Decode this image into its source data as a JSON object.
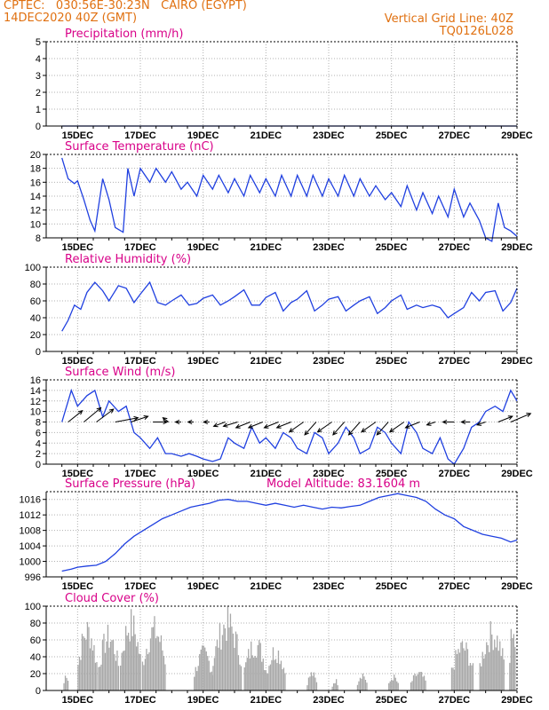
{
  "header": {
    "line1_left": "CPTEC:   030:56E-30:23N   CAIRO (EGYPT)",
    "line2_left": "14DEC2020 40Z (GMT)",
    "line1_right": "Vertical Grid Line: 40Z",
    "line2_right": "TQ0126L028"
  },
  "colors": {
    "header": "#e07010",
    "title": "#d80088",
    "line": "#2040e0",
    "bars": "#a8a8a8",
    "grid": "#b0b0b0"
  },
  "date_labels": [
    "15DEC",
    "17DEC",
    "19DEC",
    "21DEC",
    "23DEC",
    "25DEC",
    "27DEC",
    "29DEC"
  ],
  "chart_data": [
    {
      "id": "precip",
      "type": "line",
      "title": "Precipitation (mm/h)",
      "ylim": [
        0,
        5
      ],
      "yticks": [
        0,
        1,
        2,
        3,
        4,
        5
      ],
      "x_start": "14DEC2020",
      "x_end": "29DEC2020",
      "series": [
        {
          "x": [
            14.5,
            29
          ],
          "y": [
            0,
            0
          ]
        }
      ]
    },
    {
      "id": "temperature",
      "type": "line",
      "title": "Surface Temperature (nC)",
      "ylim": [
        8,
        20
      ],
      "yticks": [
        8,
        10,
        12,
        14,
        16,
        18,
        20
      ],
      "series": [
        {
          "x": [
            14.5,
            14.7,
            14.9,
            15.0,
            15.2,
            15.4,
            15.55,
            15.8,
            16.0,
            16.2,
            16.45,
            16.6,
            16.8,
            17.0,
            17.3,
            17.5,
            17.8,
            18.0,
            18.3,
            18.5,
            18.8,
            19.0,
            19.3,
            19.5,
            19.8,
            20.0,
            20.3,
            20.5,
            20.8,
            21.0,
            21.3,
            21.5,
            21.8,
            22.0,
            22.3,
            22.5,
            22.8,
            23.0,
            23.3,
            23.5,
            23.8,
            24.0,
            24.3,
            24.5,
            24.8,
            25.0,
            25.3,
            25.5,
            25.8,
            26.0,
            26.3,
            26.5,
            26.8,
            27.0,
            27.3,
            27.5,
            27.8,
            28.0,
            28.2,
            28.4,
            28.6,
            28.8,
            29.0
          ],
          "y": [
            19.5,
            16.5,
            15.8,
            16.2,
            13.5,
            10.5,
            9,
            16.5,
            13.5,
            9.5,
            8.8,
            18,
            14,
            18,
            16,
            18,
            16,
            17.5,
            15,
            16,
            14,
            17,
            15,
            17,
            14.5,
            16.5,
            14,
            17,
            14.5,
            16.5,
            14,
            17,
            14,
            17,
            14,
            17,
            14,
            16.5,
            14,
            17,
            14,
            16.5,
            14,
            15.5,
            13.5,
            14.5,
            12.5,
            15.5,
            12,
            14.5,
            11.5,
            14,
            11,
            15,
            11,
            13,
            10.5,
            8,
            7,
            13,
            9.5,
            9,
            8.2
          ]
        }
      ]
    },
    {
      "id": "humidity",
      "type": "line",
      "title": "Relative Humidity (%)",
      "ylim": [
        0,
        100
      ],
      "yticks": [
        0,
        20,
        40,
        60,
        80,
        100
      ],
      "series": [
        {
          "x": [
            14.5,
            14.7,
            14.9,
            15.1,
            15.3,
            15.55,
            15.8,
            16.0,
            16.3,
            16.55,
            16.8,
            17.0,
            17.3,
            17.55,
            17.8,
            18.0,
            18.3,
            18.55,
            18.8,
            19.0,
            19.3,
            19.55,
            19.8,
            20.0,
            20.3,
            20.55,
            20.8,
            21.0,
            21.3,
            21.55,
            21.8,
            22.0,
            22.3,
            22.55,
            22.8,
            23.0,
            23.3,
            23.55,
            23.8,
            24.0,
            24.3,
            24.55,
            24.8,
            25.0,
            25.3,
            25.5,
            25.8,
            26.0,
            26.3,
            26.55,
            26.8,
            27.0,
            27.3,
            27.55,
            27.8,
            28.0,
            28.3,
            28.55,
            28.8,
            29.0
          ],
          "y": [
            24,
            37,
            55,
            50,
            70,
            82,
            72,
            60,
            78,
            75,
            58,
            68,
            82,
            58,
            55,
            60,
            67,
            55,
            57,
            63,
            67,
            55,
            60,
            65,
            73,
            55,
            55,
            64,
            70,
            48,
            58,
            62,
            72,
            48,
            55,
            62,
            65,
            48,
            55,
            60,
            65,
            45,
            52,
            60,
            67,
            50,
            55,
            52,
            55,
            52,
            40,
            45,
            52,
            70,
            60,
            70,
            72,
            48,
            58,
            75
          ]
        }
      ]
    },
    {
      "id": "wind",
      "type": "line",
      "title": "Surface Wind (m/s)",
      "ylim": [
        0,
        16
      ],
      "yticks": [
        0,
        2,
        4,
        6,
        8,
        10,
        12,
        14,
        16
      ],
      "series": [
        {
          "x": [
            14.5,
            14.8,
            15.0,
            15.3,
            15.55,
            15.8,
            16.0,
            16.3,
            16.55,
            16.8,
            17.0,
            17.3,
            17.55,
            17.8,
            18.0,
            18.3,
            18.55,
            18.8,
            19.0,
            19.3,
            19.55,
            19.8,
            20.0,
            20.3,
            20.55,
            20.8,
            21.0,
            21.3,
            21.55,
            21.8,
            22.0,
            22.3,
            22.55,
            22.8,
            23.0,
            23.3,
            23.55,
            23.8,
            24.0,
            24.3,
            24.55,
            24.8,
            25.0,
            25.3,
            25.55,
            25.8,
            26.0,
            26.3,
            26.55,
            26.8,
            27.0,
            27.3,
            27.55,
            27.8,
            28.0,
            28.3,
            28.55,
            28.8,
            29.0
          ],
          "y": [
            8,
            14,
            11,
            13,
            14,
            9,
            12,
            10,
            11,
            6,
            5,
            3,
            5,
            2,
            2,
            1.5,
            2,
            1.5,
            1,
            0.5,
            1,
            5,
            4,
            3,
            7,
            4,
            5,
            3,
            6,
            5,
            3,
            2,
            6,
            5,
            2,
            4,
            7,
            5,
            2,
            3,
            7,
            6,
            4,
            2,
            8,
            6,
            3,
            2,
            5,
            1,
            0,
            3,
            7,
            8,
            10,
            11,
            10,
            14,
            12
          ]
        }
      ],
      "arrows": [
        {
          "x": 14.7,
          "dx": 10,
          "dy": -8
        },
        {
          "x": 15.2,
          "dx": 12,
          "dy": -10
        },
        {
          "x": 15.6,
          "dx": 12,
          "dy": -9
        },
        {
          "x": 16.2,
          "dx": 16,
          "dy": -3
        },
        {
          "x": 16.7,
          "dx": 12,
          "dy": -4
        },
        {
          "x": 17.4,
          "dx": 10,
          "dy": 0
        },
        {
          "x": 17.9,
          "dx": -4,
          "dy": -3
        },
        {
          "x": 18.3,
          "dx": -4,
          "dy": 0
        },
        {
          "x": 18.7,
          "dx": -4,
          "dy": 0
        },
        {
          "x": 19.2,
          "dx": -4,
          "dy": 0
        },
        {
          "x": 19.7,
          "dx": -8,
          "dy": 3
        },
        {
          "x": 20.1,
          "dx": -10,
          "dy": 3
        },
        {
          "x": 20.5,
          "dx": -10,
          "dy": 4
        },
        {
          "x": 20.9,
          "dx": -10,
          "dy": 4
        },
        {
          "x": 21.4,
          "dx": -10,
          "dy": 4
        },
        {
          "x": 21.8,
          "dx": -10,
          "dy": 4
        },
        {
          "x": 22.2,
          "dx": -10,
          "dy": 7
        },
        {
          "x": 22.6,
          "dx": -8,
          "dy": 9
        },
        {
          "x": 23.1,
          "dx": -10,
          "dy": 7
        },
        {
          "x": 23.5,
          "dx": -8,
          "dy": 9
        },
        {
          "x": 24.0,
          "dx": -8,
          "dy": 9
        },
        {
          "x": 24.5,
          "dx": -10,
          "dy": 7
        },
        {
          "x": 24.9,
          "dx": -8,
          "dy": 9
        },
        {
          "x": 25.4,
          "dx": -10,
          "dy": 7
        },
        {
          "x": 25.9,
          "dx": -10,
          "dy": 4
        },
        {
          "x": 26.4,
          "dx": -6,
          "dy": 2
        },
        {
          "x": 27.0,
          "dx": -8,
          "dy": 0
        },
        {
          "x": 27.5,
          "dx": -6,
          "dy": 0
        },
        {
          "x": 28.0,
          "dx": -6,
          "dy": 2
        },
        {
          "x": 28.4,
          "dx": 10,
          "dy": -4
        },
        {
          "x": 28.8,
          "dx": 14,
          "dy": -6
        }
      ]
    },
    {
      "id": "pressure",
      "type": "line",
      "title": "Surface Pressure (hPa)",
      "subtitle": "Model Altitude: 83.1604 m",
      "ylim": [
        996,
        1018
      ],
      "yticks": [
        996,
        1000,
        1004,
        1008,
        1012,
        1016
      ],
      "series": [
        {
          "x": [
            14.5,
            14.8,
            15.0,
            15.3,
            15.6,
            15.9,
            16.2,
            16.5,
            16.8,
            17.1,
            17.4,
            17.7,
            18.0,
            18.3,
            18.6,
            18.9,
            19.2,
            19.5,
            19.8,
            20.1,
            20.4,
            20.7,
            21.0,
            21.3,
            21.6,
            21.9,
            22.2,
            22.5,
            22.8,
            23.1,
            23.4,
            23.7,
            24.0,
            24.3,
            24.6,
            24.9,
            25.2,
            25.5,
            25.8,
            26.1,
            26.4,
            26.7,
            27.0,
            27.3,
            27.6,
            27.9,
            28.2,
            28.5,
            28.8,
            29.0
          ],
          "y": [
            997.5,
            998,
            998.5,
            998.8,
            999,
            1000,
            1002,
            1004.5,
            1006.5,
            1008,
            1009.5,
            1011,
            1012,
            1013,
            1014,
            1014.5,
            1015,
            1015.8,
            1016,
            1015.5,
            1015.5,
            1015,
            1014.5,
            1015,
            1014.5,
            1014,
            1014.5,
            1014,
            1013.5,
            1014,
            1013.8,
            1014.2,
            1014.5,
            1015.5,
            1016.5,
            1017,
            1017.5,
            1017,
            1016.5,
            1015.5,
            1013.5,
            1012,
            1011,
            1009,
            1008,
            1007,
            1006.5,
            1006,
            1005,
            1005.5
          ]
        }
      ]
    },
    {
      "id": "cloud",
      "type": "bar",
      "title": "Cloud Cover (%)",
      "ylim": [
        0,
        100
      ],
      "yticks": [
        0,
        20,
        40,
        60,
        80,
        100
      ],
      "segments": [
        {
          "x0": 14.55,
          "x1": 14.7,
          "peak": 25
        },
        {
          "x0": 15.0,
          "x1": 15.6,
          "peak": 90
        },
        {
          "x0": 15.65,
          "x1": 16.3,
          "peak": 80
        },
        {
          "x0": 16.35,
          "x1": 17.0,
          "peak": 100
        },
        {
          "x0": 17.05,
          "x1": 17.8,
          "peak": 90
        },
        {
          "x0": 18.7,
          "x1": 19.3,
          "peak": 55
        },
        {
          "x0": 19.3,
          "x1": 20.2,
          "peak": 100
        },
        {
          "x0": 20.3,
          "x1": 21.0,
          "peak": 70
        },
        {
          "x0": 21.0,
          "x1": 21.6,
          "peak": 60
        },
        {
          "x0": 22.3,
          "x1": 22.6,
          "peak": 25
        },
        {
          "x0": 23.1,
          "x1": 23.3,
          "peak": 15
        },
        {
          "x0": 23.9,
          "x1": 24.2,
          "peak": 25
        },
        {
          "x0": 24.9,
          "x1": 25.2,
          "peak": 20
        },
        {
          "x0": 25.6,
          "x1": 26.1,
          "peak": 25
        },
        {
          "x0": 26.9,
          "x1": 27.6,
          "peak": 65
        },
        {
          "x0": 27.8,
          "x1": 28.6,
          "peak": 85
        },
        {
          "x0": 28.75,
          "x1": 28.95,
          "peak": 100
        }
      ]
    }
  ]
}
